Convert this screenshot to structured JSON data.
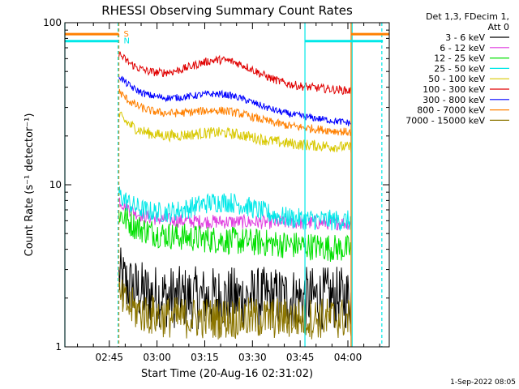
{
  "chart_data": {
    "type": "line",
    "title": "RHESSI Observing Summary Count Rates",
    "xlabel": "Start Time (20-Aug-16 02:31:02)",
    "ylabel": "Count Rate (s⁻¹ detector⁻¹)",
    "yscale": "log",
    "ylim": [
      1,
      100
    ],
    "xlim": [
      "02:31:02",
      "04:13:00"
    ],
    "x_ticks": [
      "02:45",
      "03:00",
      "03:15",
      "03:30",
      "03:45",
      "04:00"
    ],
    "y_ticks": [
      "1",
      "10",
      "100"
    ],
    "timestamp": "1-Sep-2022 08:05",
    "legend_header": [
      "Det 1,3, FDecim 1,",
      "Att 0"
    ],
    "series": [
      {
        "name": "3 - 6 keV",
        "color": "#000000",
        "start": "02:48",
        "end": "04:01",
        "level_start": 2.0,
        "level_end": 2.0,
        "noise": 0.45,
        "bump": 0
      },
      {
        "name": "6 - 12 keV",
        "color": "#e040e0",
        "start": "02:48",
        "end": "04:01",
        "level_start": 6.0,
        "level_end": 5.8,
        "noise": 0.1,
        "bump": 0
      },
      {
        "name": "12 - 25 keV",
        "color": "#00e000",
        "start": "02:48",
        "end": "04:01",
        "level_start": 5.0,
        "level_end": 4.0,
        "noise": 0.2,
        "bump": 0
      },
      {
        "name": "25 - 50 keV",
        "color": "#00e8e8",
        "start": "02:48",
        "end": "04:01",
        "level_start": 6.5,
        "level_end": 6.0,
        "noise": 0.15,
        "bump": 0.25
      },
      {
        "name": "50 - 100 keV",
        "color": "#d8c800",
        "start": "02:48",
        "end": "04:01",
        "level_start": 20,
        "level_end": 17,
        "noise": 0.08,
        "bump": 0.12
      },
      {
        "name": "100 - 300 keV",
        "color": "#e00000",
        "start": "02:48",
        "end": "04:01",
        "level_start": 48,
        "level_end": 38,
        "noise": 0.06,
        "bump": 0.35
      },
      {
        "name": "300 - 800 keV",
        "color": "#0000ff",
        "start": "02:48",
        "end": "04:01",
        "level_start": 35,
        "level_end": 24,
        "noise": 0.05,
        "bump": 0.2
      },
      {
        "name": "800 - 7000 keV",
        "color": "#ff8000",
        "start": "02:48",
        "end": "04:01",
        "level_start": 28,
        "level_end": 21,
        "noise": 0.06,
        "bump": 0.15
      },
      {
        "name": "7000 - 15000 keV",
        "color": "#8b7500",
        "start": "02:48",
        "end": "04:01",
        "level_start": 1.5,
        "level_end": 1.5,
        "noise": 0.3,
        "bump": 0
      }
    ],
    "flags": [
      {
        "label": "S",
        "color": "#ff8000",
        "value": 85,
        "start": "02:31:02",
        "end": "02:48:00"
      },
      {
        "label": "N",
        "color": "#00e8e8",
        "value": 77,
        "start": "02:31:02",
        "end": "02:48:00"
      },
      {
        "label": "",
        "color": "#ff8000",
        "value": 85,
        "start": "04:01:00",
        "end": "04:13:00"
      },
      {
        "label": "",
        "color": "#00e8e8",
        "value": 77,
        "start": "03:46:30",
        "end": "04:11:00"
      }
    ],
    "vlines": [
      {
        "color": "#ff8000",
        "at": "02:48:00",
        "dashed": true
      },
      {
        "color": "#00e8e8",
        "at": "02:47:45",
        "dashed": true
      },
      {
        "color": "#00e8e8",
        "at": "03:46:30",
        "dashed": false
      },
      {
        "color": "#ff8000",
        "at": "04:01:00",
        "dashed": false
      },
      {
        "color": "#00e8e8",
        "at": "04:01:20",
        "dashed": false
      },
      {
        "color": "#00e8e8",
        "at": "04:10:40",
        "dashed": true
      },
      {
        "color": "#00e8e8",
        "at": "02:31:02",
        "dashed": false
      }
    ],
    "grid": false,
    "legend_position": "right"
  }
}
